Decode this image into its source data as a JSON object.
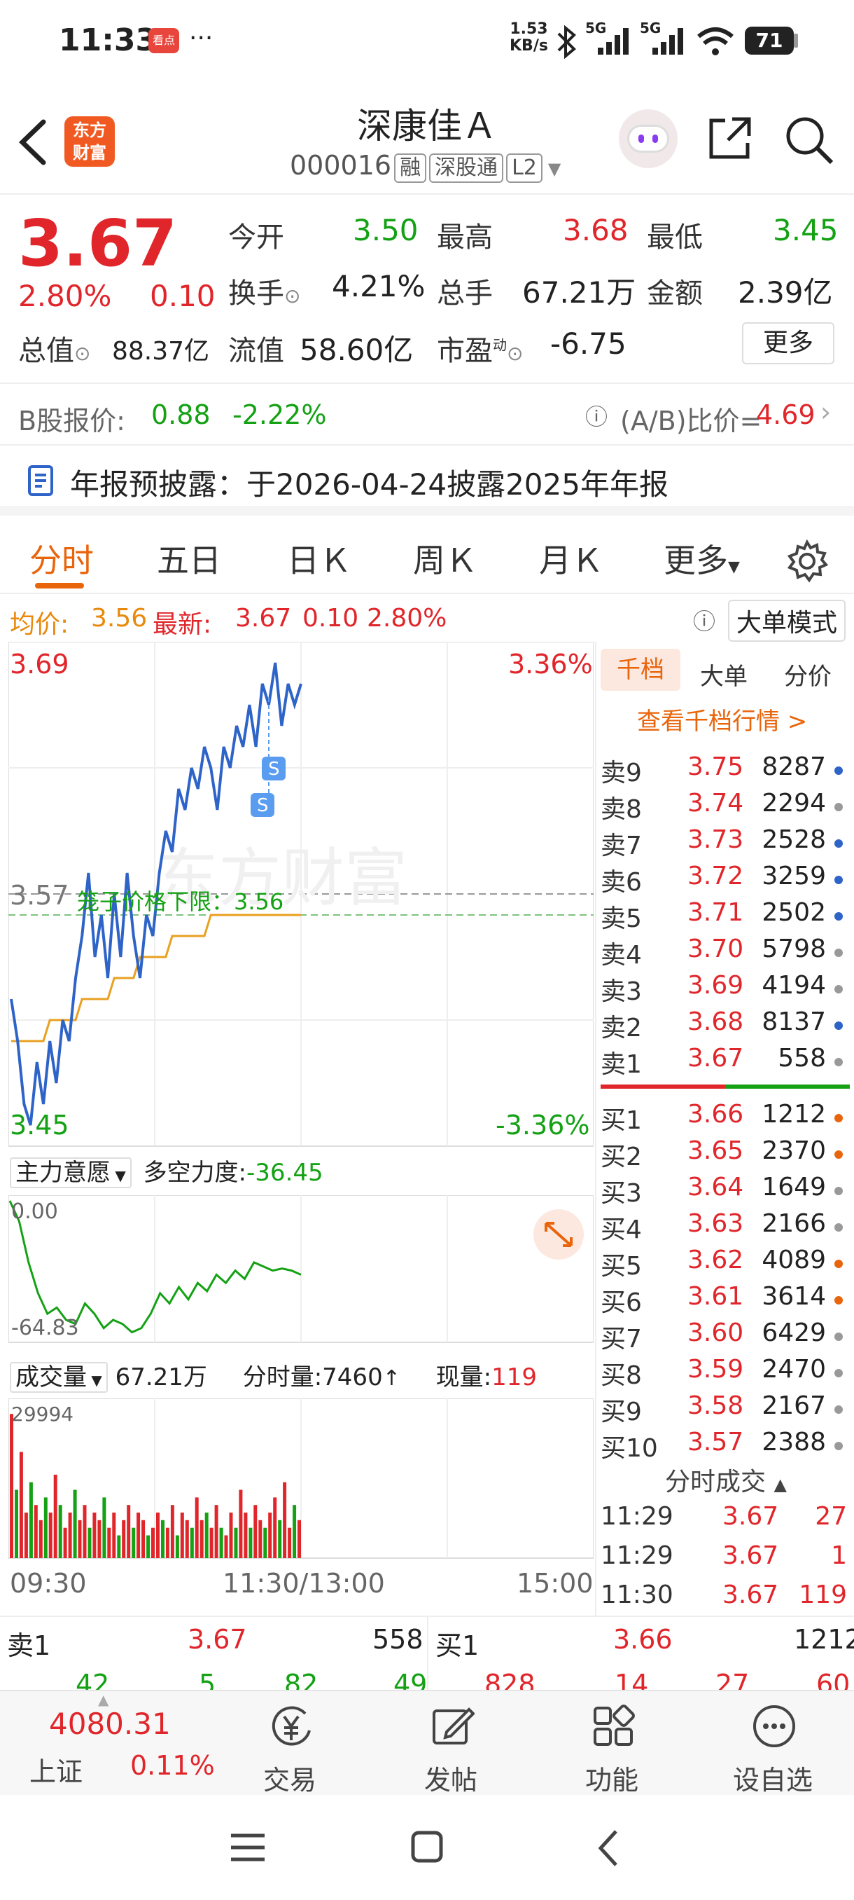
{
  "status_bar": {
    "time": "11:33",
    "app_badge": "看点",
    "dots": "···",
    "net_speed_top": "1.53",
    "net_speed_unit": "KB/s",
    "sig1": "5G",
    "sig2": "5G",
    "battery": "71"
  },
  "header": {
    "back_icon": "chevron-left-icon",
    "logo_line1": "东方",
    "logo_line2": "财富",
    "stock_name": "深康佳Ａ",
    "stock_code": "000016",
    "tags": [
      "融",
      "深股通",
      "L2"
    ]
  },
  "quote": {
    "price": "3.67",
    "change_pct": "2.80%",
    "change": "0.10",
    "open_label": "今开",
    "open": "3.50",
    "high_label": "最高",
    "high": "3.68",
    "low_label": "最低",
    "low": "3.45",
    "turnover_label": "换手",
    "turnover": "4.21%",
    "volume_label": "总手",
    "volume": "67.21万",
    "amount_label": "金额",
    "amount": "2.39亿",
    "mcap_label": "总值",
    "mcap": "88.37亿",
    "float_label": "流值",
    "float": "58.60亿",
    "pe_label": "市盈",
    "pe_sup": "动",
    "pe": "-6.75",
    "more": "更多"
  },
  "bshare": {
    "label": "B股报价:",
    "price": "0.88",
    "pct": "-2.22%",
    "ratio_label": "(A/B)比价=",
    "ratio": "4.69"
  },
  "notice": {
    "text": "年报预披露：于2026-04-24披露2025年年报"
  },
  "tabs": [
    "分时",
    "五日",
    "日Ｋ",
    "周Ｋ",
    "月Ｋ",
    "更多"
  ],
  "info_line": {
    "avg_label": "均价:",
    "avg": "3.56",
    "latest_label": "最新:",
    "latest": "3.67",
    "chg": "0.10",
    "pct": "2.80%",
    "mode_btn": "大单模式"
  },
  "chart": {
    "y_top": "3.69",
    "y_bottom": "3.45",
    "pct_top": "3.36%",
    "pct_bottom": "-3.36%",
    "mid_price": "3.57",
    "limit_label": "笼子价格下限：3.56",
    "marker": "S",
    "watermark": "东方财富",
    "x_labels": [
      "09:30",
      "11:30/13:00",
      "15:00"
    ]
  },
  "chart_data": {
    "type": "line",
    "title": "",
    "xlabel": "",
    "ylabel": "",
    "ylim": [
      3.45,
      3.69
    ],
    "series": [
      {
        "values": [
          3.52,
          3.5,
          3.47,
          3.46,
          3.49,
          3.47,
          3.5,
          3.48,
          3.51,
          3.5,
          3.53,
          3.55,
          3.58,
          3.54,
          3.56,
          3.53,
          3.57,
          3.54,
          3.58,
          3.55,
          3.53,
          3.56,
          3.55,
          3.58,
          3.6,
          3.59,
          3.62,
          3.61,
          3.63,
          3.62,
          3.64,
          3.63,
          3.61,
          3.64,
          3.63,
          3.65,
          3.64,
          3.66,
          3.64,
          3.67,
          3.66,
          3.68,
          3.65,
          3.67,
          3.66,
          3.67
        ]
      },
      {
        "values": [
          3.5,
          3.5,
          3.5,
          3.5,
          3.5,
          3.5,
          3.51,
          3.51,
          3.51,
          3.51,
          3.51,
          3.52,
          3.52,
          3.52,
          3.52,
          3.52,
          3.53,
          3.53,
          3.53,
          3.53,
          3.54,
          3.54,
          3.54,
          3.54,
          3.54,
          3.55,
          3.55,
          3.55,
          3.55,
          3.55,
          3.55,
          3.56,
          3.56,
          3.56,
          3.56,
          3.56,
          3.56,
          3.56,
          3.56,
          3.56,
          3.56,
          3.56,
          3.56,
          3.56,
          3.56,
          3.56
        ]
      }
    ]
  },
  "indicator": {
    "name": "主力意愿",
    "label": "多空力度:",
    "value": "-36.45",
    "y_top": "0.00",
    "y_bottom": "-64.83"
  },
  "indicator_data": [
    0.0,
    -10,
    -30,
    -45,
    -55,
    -52,
    -58,
    -60,
    -50,
    -55,
    -62,
    -58,
    -60,
    -64,
    -62,
    -55,
    -45,
    -50,
    -42,
    -48,
    -40,
    -44,
    -36,
    -40,
    -34,
    -38,
    -30,
    -32,
    -34,
    -33,
    -34,
    -36
  ],
  "volume_panel": {
    "name": "成交量",
    "total": "67.21万",
    "tick_label": "分时量:7460",
    "now_label": "现量:",
    "now": "119",
    "y_top": "29994"
  },
  "volume_data": [
    0.95,
    0.45,
    0.7,
    0.3,
    0.5,
    0.35,
    0.25,
    0.4,
    0.3,
    0.55,
    0.35,
    0.2,
    0.3,
    0.45,
    0.25,
    0.35,
    0.2,
    0.3,
    0.25,
    0.4,
    0.2,
    0.3,
    0.15,
    0.25,
    0.35,
    0.2,
    0.3,
    0.25,
    0.15,
    0.2,
    0.3,
    0.25,
    0.2,
    0.35,
    0.15,
    0.3,
    0.25,
    0.2,
    0.4,
    0.25,
    0.3,
    0.2,
    0.35,
    0.2,
    0.15,
    0.3,
    0.2,
    0.45,
    0.3,
    0.2,
    0.35,
    0.25,
    0.2,
    0.3,
    0.4,
    0.25,
    0.5,
    0.2,
    0.35,
    0.25
  ],
  "sidebar": {
    "tabs": [
      "千档",
      "大单",
      "分价"
    ],
    "deep_link": "查看千档行情 >",
    "asks": [
      {
        "label": "卖9",
        "price": "3.75",
        "vol": "8287",
        "dot": "#2e63c8"
      },
      {
        "label": "卖8",
        "price": "3.74",
        "vol": "2294",
        "dot": "#999"
      },
      {
        "label": "卖7",
        "price": "3.73",
        "vol": "2528",
        "dot": "#2e63c8"
      },
      {
        "label": "卖6",
        "price": "3.72",
        "vol": "3259",
        "dot": "#2e63c8"
      },
      {
        "label": "卖5",
        "price": "3.71",
        "vol": "2502",
        "dot": "#2e63c8"
      },
      {
        "label": "卖4",
        "price": "3.70",
        "vol": "5798",
        "dot": "#999"
      },
      {
        "label": "卖3",
        "price": "3.69",
        "vol": "4194",
        "dot": "#999"
      },
      {
        "label": "卖2",
        "price": "3.68",
        "vol": "8137",
        "dot": "#2e63c8"
      },
      {
        "label": "卖1",
        "price": "3.67",
        "vol": "558",
        "dot": "#999"
      }
    ],
    "bids": [
      {
        "label": "买1",
        "price": "3.66",
        "vol": "1212",
        "dot": "#e8650c"
      },
      {
        "label": "买2",
        "price": "3.65",
        "vol": "2370",
        "dot": "#e8650c"
      },
      {
        "label": "买3",
        "price": "3.64",
        "vol": "1649",
        "dot": "#999"
      },
      {
        "label": "买4",
        "price": "3.63",
        "vol": "2166",
        "dot": "#999"
      },
      {
        "label": "买5",
        "price": "3.62",
        "vol": "4089",
        "dot": "#e8650c"
      },
      {
        "label": "买6",
        "price": "3.61",
        "vol": "3614",
        "dot": "#e8650c"
      },
      {
        "label": "买7",
        "price": "3.60",
        "vol": "6429",
        "dot": "#999"
      },
      {
        "label": "买8",
        "price": "3.59",
        "vol": "2470",
        "dot": "#999"
      },
      {
        "label": "买9",
        "price": "3.58",
        "vol": "2167",
        "dot": "#999"
      },
      {
        "label": "买10",
        "price": "3.57",
        "vol": "2388",
        "dot": "#999"
      }
    ],
    "trades_title": "分时成交",
    "trades": [
      {
        "time": "11:29",
        "price": "3.67",
        "vol": "27"
      },
      {
        "time": "11:29",
        "price": "3.67",
        "vol": "1"
      },
      {
        "time": "11:30",
        "price": "3.67",
        "vol": "119"
      }
    ]
  },
  "bottom_quote": {
    "ask_label": "卖1",
    "ask_price": "3.67",
    "ask_vol": "558",
    "bid_label": "买1",
    "bid_price": "3.66",
    "bid_vol": "1212",
    "partial_left": [
      "42",
      "5",
      "82",
      "49"
    ],
    "partial_right": [
      "828",
      "14",
      "27",
      "60"
    ]
  },
  "bottom_nav": {
    "index_value": "4080.31",
    "index_name": "上证",
    "index_pct": "0.11%",
    "items": [
      {
        "label": "交易",
        "icon": "trade-yen-icon"
      },
      {
        "label": "发帖",
        "icon": "edit-post-icon"
      },
      {
        "label": "功能",
        "icon": "grid-apps-icon"
      },
      {
        "label": "设自选",
        "icon": "more-dots-icon"
      }
    ]
  }
}
